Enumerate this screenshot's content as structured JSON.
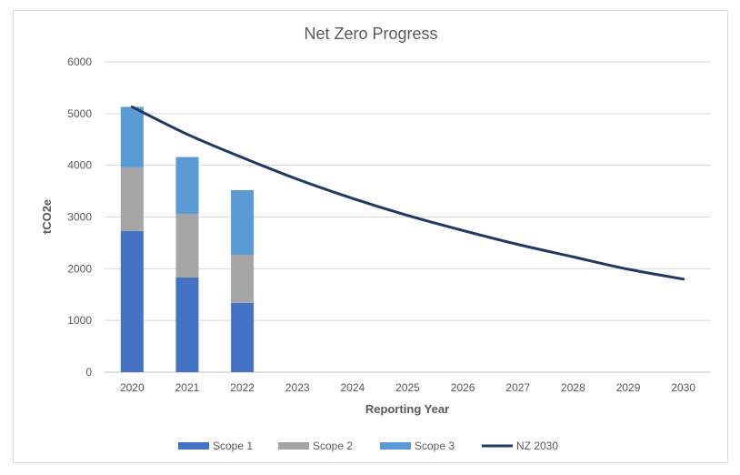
{
  "chart_data": {
    "type": "bar",
    "title": "Net Zero Progress",
    "xlabel": "Reporting Year",
    "ylabel": "tCO2e",
    "ylim": [
      0,
      6000
    ],
    "yticks": [
      "0",
      "1000",
      "2000",
      "3000",
      "4000",
      "5000",
      "6000"
    ],
    "categories": [
      "2020",
      "2021",
      "2022",
      "2023",
      "2024",
      "2025",
      "2026",
      "2027",
      "2028",
      "2029",
      "2030"
    ],
    "grid": true,
    "legend_position": "bottom",
    "series": [
      {
        "name": "Scope 1",
        "type": "bar",
        "color": "#4472c4",
        "values": [
          2730,
          1830,
          1340,
          null,
          null,
          null,
          null,
          null,
          null,
          null,
          null
        ]
      },
      {
        "name": "Scope 2",
        "type": "bar",
        "color": "#a5a5a5",
        "values": [
          1230,
          1230,
          930,
          null,
          null,
          null,
          null,
          null,
          null,
          null,
          null
        ]
      },
      {
        "name": "Scope 3",
        "type": "bar",
        "color": "#5b9bd5",
        "values": [
          1170,
          1100,
          1250,
          null,
          null,
          null,
          null,
          null,
          null,
          null,
          null
        ]
      },
      {
        "name": "NZ 2030",
        "type": "line",
        "color": "#1f3864",
        "values": [
          5130,
          4600,
          4150,
          3730,
          3360,
          3030,
          2740,
          2470,
          2230,
          1990,
          1800
        ]
      }
    ]
  }
}
